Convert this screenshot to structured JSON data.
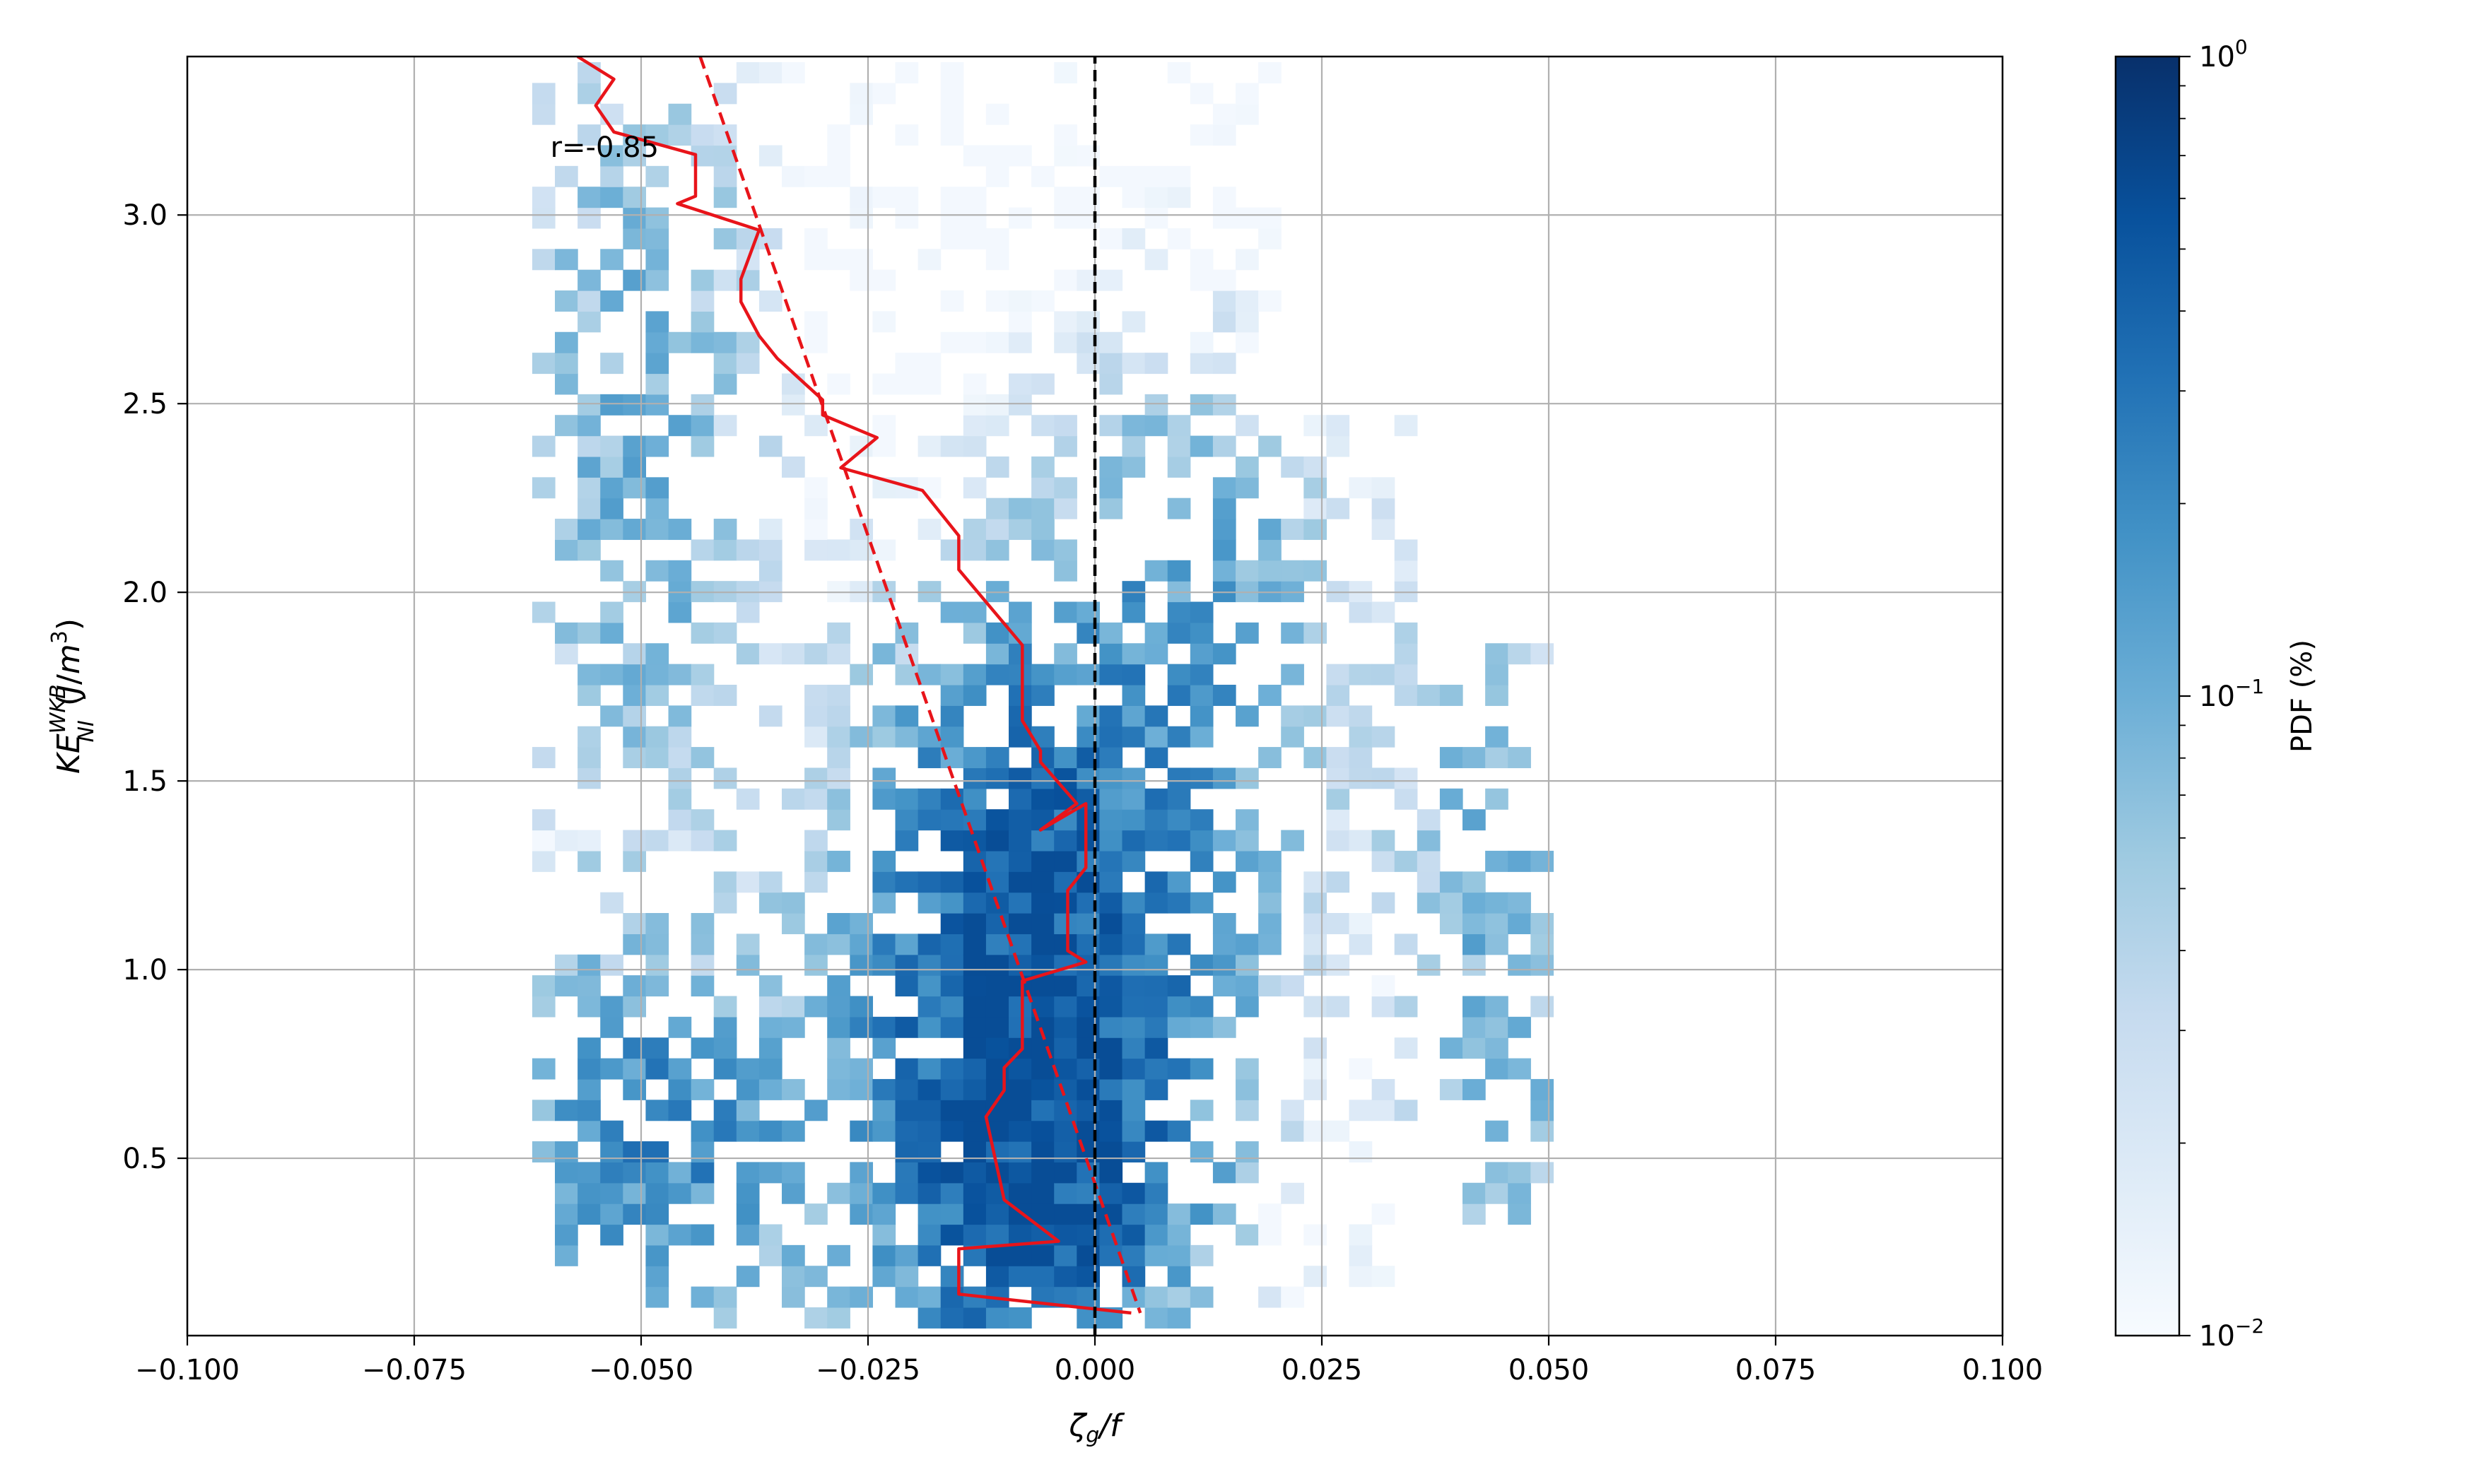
{
  "chart_data": {
    "type": "heatmap",
    "xlabel": "ζ_g/f",
    "ylabel": "KE_NI^WKB (J/m³)",
    "xlim": [
      -0.1,
      0.1
    ],
    "ylim": [
      0.03,
      3.42
    ],
    "x_ticks": [
      -0.1,
      -0.075,
      -0.05,
      -0.025,
      0.0,
      0.025,
      0.05,
      0.075,
      0.1
    ],
    "x_tick_labels": [
      "−0.100",
      "−0.075",
      "−0.050",
      "−0.025",
      "0.000",
      "0.025",
      "0.050",
      "0.075",
      "0.100"
    ],
    "y_ticks": [
      0.5,
      1.0,
      1.5,
      2.0,
      2.5,
      3.0
    ],
    "y_tick_labels": [
      "0.5",
      "1.0",
      "1.5",
      "2.0",
      "2.5",
      "3.0"
    ],
    "grid": true,
    "colormap": "Blues",
    "colorbar": {
      "label": "PDF (%)",
      "scale": "log",
      "range": [
        0.01,
        1.0
      ],
      "ticks": [
        {
          "value": 1.0,
          "base": "10",
          "exp": "0"
        },
        {
          "value": 0.1,
          "base": "10",
          "exp": "−1"
        },
        {
          "value": 0.01,
          "base": "10",
          "exp": "−2"
        }
      ]
    },
    "heatmap": {
      "x_range": [
        -0.062,
        0.05
      ],
      "y_range": [
        0.05,
        3.15
      ],
      "bin_width_x": 0.0025,
      "bin_width_y": 0.055,
      "density_peak": {
        "x": -0.008,
        "y": 0.55
      },
      "value_range": [
        0.01,
        0.6
      ]
    },
    "series": [
      {
        "name": "binned mean",
        "style": "solid",
        "color": "#e8141a",
        "x": [
          -0.057,
          -0.053,
          -0.055,
          -0.053,
          -0.044,
          -0.044,
          -0.046,
          -0.037,
          -0.039,
          -0.039,
          -0.037,
          -0.035,
          -0.03,
          -0.03,
          -0.024,
          -0.028,
          -0.019,
          -0.015,
          -0.015,
          -0.008,
          -0.008,
          -0.006,
          -0.006,
          -0.002,
          -0.006,
          -0.001,
          -0.001,
          -0.003,
          -0.003,
          -0.001,
          -0.008,
          -0.008,
          -0.01,
          -0.01,
          -0.012,
          -0.01,
          -0.004,
          -0.015,
          -0.015,
          0.004
        ],
        "y": [
          3.42,
          3.36,
          3.29,
          3.22,
          3.16,
          3.05,
          3.03,
          2.96,
          2.83,
          2.77,
          2.68,
          2.62,
          2.51,
          2.47,
          2.41,
          2.33,
          2.27,
          2.15,
          2.06,
          1.86,
          1.66,
          1.58,
          1.55,
          1.44,
          1.37,
          1.44,
          1.27,
          1.21,
          1.05,
          1.02,
          0.97,
          0.79,
          0.74,
          0.68,
          0.61,
          0.39,
          0.28,
          0.26,
          0.14,
          0.09
        ]
      },
      {
        "name": "linear fit",
        "style": "dashed",
        "color": "#e8141a",
        "x": [
          -0.0435,
          0.005
        ],
        "y": [
          3.42,
          0.09
        ]
      },
      {
        "name": "ζ_g/f = 0",
        "style": "dashed",
        "color": "#000000",
        "x": [
          0.0,
          0.0
        ],
        "y": [
          0.03,
          3.42
        ]
      }
    ],
    "annotations": [
      {
        "text": "r=-0.85",
        "x": -0.06,
        "y": 3.18
      }
    ]
  }
}
